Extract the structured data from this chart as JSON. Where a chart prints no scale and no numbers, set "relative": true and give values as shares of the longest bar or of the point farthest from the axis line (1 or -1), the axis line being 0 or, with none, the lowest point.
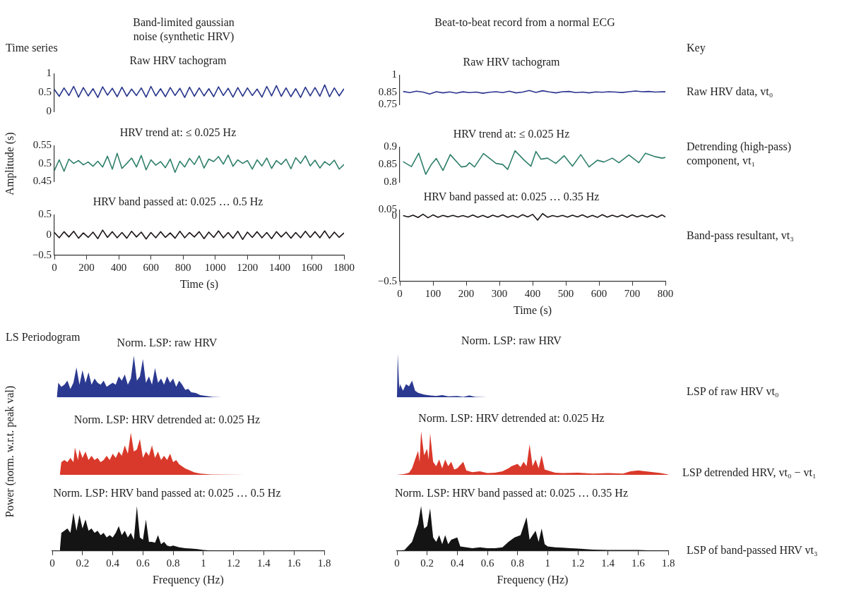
{
  "chart_data": [
    {
      "type": "line",
      "title": "Raw HRV tachogram",
      "color": "#27348b",
      "annotations": [
        "Band-limited gaussian noise (synthetic HRV)",
        "Time series"
      ],
      "tick_labels": "y",
      "xlim": [
        0,
        1800
      ],
      "xticks": [
        0,
        200,
        400,
        600,
        800,
        1000,
        1200,
        1400,
        1600,
        1800
      ],
      "ylim": [
        0,
        1
      ],
      "yticks": [
        0,
        0.5,
        1
      ],
      "x": [
        0,
        30,
        60,
        90,
        120,
        150,
        180,
        210,
        240,
        270,
        300,
        330,
        360,
        390,
        420,
        450,
        480,
        510,
        540,
        570,
        600,
        630,
        660,
        690,
        720,
        750,
        780,
        810,
        840,
        870,
        900,
        930,
        960,
        990,
        1020,
        1050,
        1080,
        1110,
        1140,
        1170,
        1200,
        1230,
        1260,
        1290,
        1320,
        1350,
        1380,
        1410,
        1440,
        1470,
        1500,
        1530,
        1560,
        1590,
        1620,
        1650,
        1680,
        1710,
        1740,
        1770,
        1800
      ],
      "values": [
        0.58,
        0.4,
        0.62,
        0.42,
        0.66,
        0.38,
        0.63,
        0.41,
        0.6,
        0.37,
        0.65,
        0.43,
        0.61,
        0.39,
        0.64,
        0.4,
        0.59,
        0.42,
        0.62,
        0.38,
        0.66,
        0.41,
        0.6,
        0.39,
        0.63,
        0.42,
        0.61,
        0.37,
        0.64,
        0.4,
        0.62,
        0.41,
        0.6,
        0.39,
        0.65,
        0.42,
        0.61,
        0.38,
        0.63,
        0.4,
        0.62,
        0.42,
        0.59,
        0.38,
        0.66,
        0.41,
        0.68,
        0.4,
        0.62,
        0.39,
        0.6,
        0.37,
        0.64,
        0.41,
        0.63,
        0.4,
        0.7,
        0.39,
        0.62,
        0.41,
        0.6
      ]
    },
    {
      "type": "line",
      "title": "Raw HRV tachogram",
      "color": "#2a3590",
      "annotations": [
        "Beat-to-beat record from a normal ECG",
        "Key",
        "Raw HRV data, vt₀"
      ],
      "tick_labels": "y",
      "xlim": [
        0,
        800
      ],
      "xticks": [
        0,
        100,
        200,
        300,
        400,
        500,
        600,
        700,
        800
      ],
      "ylim": [
        0.75,
        1
      ],
      "yticks": [
        0.75,
        0.85,
        1
      ],
      "x": [
        10,
        30,
        50,
        70,
        90,
        110,
        130,
        150,
        170,
        190,
        210,
        230,
        250,
        270,
        290,
        310,
        330,
        350,
        370,
        390,
        410,
        430,
        450,
        470,
        490,
        510,
        530,
        550,
        570,
        590,
        610,
        630,
        650,
        670,
        690,
        710,
        730,
        750,
        770,
        790,
        800
      ],
      "values": [
        0.86,
        0.85,
        0.862,
        0.855,
        0.838,
        0.858,
        0.848,
        0.856,
        0.846,
        0.857,
        0.85,
        0.855,
        0.845,
        0.853,
        0.858,
        0.85,
        0.862,
        0.848,
        0.855,
        0.868,
        0.852,
        0.866,
        0.856,
        0.848,
        0.858,
        0.86,
        0.85,
        0.855,
        0.848,
        0.856,
        0.853,
        0.858,
        0.855,
        0.851,
        0.858,
        0.864,
        0.858,
        0.86,
        0.855,
        0.858,
        0.857
      ]
    },
    {
      "type": "line",
      "title": "HRV trend at: ≤ 0.025 Hz",
      "ylabel": "Amplitude (s)",
      "color": "#2f7f6a",
      "tick_labels": "y",
      "xlim": [
        0,
        1800
      ],
      "xticks": [
        0,
        200,
        400,
        600,
        800,
        1000,
        1200,
        1400,
        1600,
        1800
      ],
      "ylim": [
        0.45,
        0.55
      ],
      "yticks": [
        0.45,
        0.5,
        0.55
      ],
      "x": [
        0,
        30,
        60,
        90,
        120,
        150,
        180,
        210,
        240,
        270,
        300,
        330,
        360,
        390,
        420,
        450,
        480,
        510,
        540,
        570,
        600,
        630,
        660,
        690,
        720,
        750,
        780,
        810,
        840,
        870,
        900,
        930,
        960,
        990,
        1020,
        1050,
        1080,
        1110,
        1140,
        1170,
        1200,
        1230,
        1260,
        1290,
        1320,
        1350,
        1380,
        1410,
        1440,
        1470,
        1500,
        1530,
        1560,
        1590,
        1620,
        1650,
        1680,
        1710,
        1740,
        1770,
        1800
      ],
      "values": [
        0.48,
        0.51,
        0.478,
        0.512,
        0.5,
        0.508,
        0.496,
        0.504,
        0.492,
        0.506,
        0.49,
        0.52,
        0.484,
        0.528,
        0.486,
        0.5,
        0.515,
        0.49,
        0.522,
        0.482,
        0.51,
        0.495,
        0.505,
        0.488,
        0.512,
        0.475,
        0.506,
        0.49,
        0.514,
        0.497,
        0.521,
        0.487,
        0.512,
        0.505,
        0.519,
        0.498,
        0.523,
        0.492,
        0.51,
        0.5,
        0.508,
        0.484,
        0.51,
        0.493,
        0.515,
        0.486,
        0.508,
        0.497,
        0.512,
        0.485,
        0.516,
        0.5,
        0.521,
        0.493,
        0.509,
        0.487,
        0.505,
        0.495,
        0.509,
        0.484,
        0.497
      ]
    },
    {
      "type": "line",
      "title": "HRV trend at: ≤ 0.025 Hz",
      "color": "#2f7f6a",
      "annotations": [
        "Detrending (high-pass) component, vt₁"
      ],
      "tick_labels": "y",
      "xlim": [
        0,
        800
      ],
      "xticks": [
        0,
        100,
        200,
        300,
        400,
        500,
        600,
        700,
        800
      ],
      "ylim": [
        0.8,
        0.9
      ],
      "yticks": [
        0.8,
        0.85,
        0.9
      ],
      "x": [
        10,
        35,
        57,
        78,
        95,
        110,
        130,
        152,
        185,
        200,
        210,
        225,
        252,
        290,
        310,
        325,
        347,
        375,
        395,
        410,
        425,
        445,
        470,
        495,
        520,
        545,
        570,
        595,
        615,
        640,
        660,
        690,
        720,
        740,
        770,
        790,
        800
      ],
      "values": [
        0.858,
        0.844,
        0.882,
        0.822,
        0.85,
        0.867,
        0.833,
        0.878,
        0.843,
        0.845,
        0.855,
        0.843,
        0.881,
        0.853,
        0.85,
        0.836,
        0.889,
        0.862,
        0.845,
        0.887,
        0.865,
        0.868,
        0.853,
        0.875,
        0.845,
        0.878,
        0.843,
        0.862,
        0.857,
        0.868,
        0.855,
        0.877,
        0.855,
        0.882,
        0.872,
        0.868,
        0.87
      ]
    },
    {
      "type": "line",
      "title": "HRV band passed at: 0.025 … 0.5 Hz",
      "xlabel": "Time (s)",
      "color": "#1c1418",
      "xlim": [
        0,
        1800
      ],
      "xticks": [
        0,
        200,
        400,
        600,
        800,
        1000,
        1200,
        1400,
        1600,
        1800
      ],
      "ylim": [
        -0.5,
        0.5
      ],
      "yticks": [
        {
          "value": -0.5,
          "label": "−0.5"
        },
        0,
        0.5
      ],
      "x": [
        0,
        30,
        60,
        90,
        120,
        150,
        180,
        210,
        240,
        270,
        300,
        330,
        360,
        390,
        420,
        450,
        480,
        510,
        540,
        570,
        600,
        630,
        660,
        690,
        720,
        750,
        780,
        810,
        840,
        870,
        900,
        930,
        960,
        990,
        1020,
        1050,
        1080,
        1110,
        1140,
        1170,
        1200,
        1230,
        1260,
        1290,
        1320,
        1350,
        1380,
        1410,
        1440,
        1470,
        1500,
        1530,
        1560,
        1590,
        1620,
        1650,
        1680,
        1710,
        1740,
        1770,
        1800
      ],
      "values": [
        0.06,
        -0.07,
        0.08,
        -0.05,
        0.09,
        -0.08,
        0.05,
        -0.06,
        0.07,
        -0.09,
        0.12,
        -0.06,
        0.08,
        -0.07,
        0.06,
        -0.08,
        0.09,
        -0.05,
        0.07,
        -0.1,
        0.06,
        -0.07,
        0.08,
        -0.06,
        0.05,
        -0.08,
        0.09,
        -0.07,
        0.06,
        -0.05,
        0.08,
        -0.09,
        0.07,
        -0.06,
        0.1,
        -0.07,
        0.06,
        -0.08,
        0.09,
        -0.11,
        0.07,
        -0.06,
        0.08,
        -0.07,
        0.06,
        -0.09,
        0.08,
        -0.05,
        0.07,
        -0.08,
        0.06,
        -0.07,
        0.09,
        -0.06,
        0.08,
        -0.07,
        0.1,
        -0.08,
        0.07,
        -0.06,
        0.05
      ]
    },
    {
      "type": "line",
      "title": "HRV band passed at: 0.025 … 0.35 Hz",
      "xlabel": "Time (s)",
      "color": "#1c1418",
      "annotations": [
        "Band-pass resultant, vt₃"
      ],
      "xlim": [
        0,
        800
      ],
      "xticks": [
        0,
        100,
        200,
        300,
        400,
        500,
        600,
        700,
        800
      ],
      "ylim": [
        -0.5,
        0.05
      ],
      "yticks": [
        {
          "value": -0.5,
          "label": "−0.5"
        },
        0,
        0.05
      ],
      "x": [
        10,
        25,
        40,
        55,
        70,
        85,
        100,
        115,
        130,
        145,
        160,
        175,
        190,
        205,
        220,
        235,
        250,
        265,
        280,
        295,
        310,
        325,
        340,
        355,
        370,
        385,
        400,
        415,
        430,
        445,
        460,
        475,
        490,
        505,
        520,
        535,
        550,
        565,
        580,
        595,
        610,
        625,
        640,
        655,
        670,
        685,
        700,
        715,
        730,
        745,
        760,
        775,
        790,
        800
      ],
      "values": [
        0.005,
        -0.006,
        0.008,
        -0.01,
        0.015,
        -0.012,
        0.01,
        -0.008,
        0.006,
        -0.005,
        0.007,
        -0.006,
        0.005,
        -0.007,
        0.009,
        -0.008,
        0.006,
        -0.01,
        0.008,
        -0.006,
        0.01,
        -0.008,
        0.006,
        -0.009,
        0.012,
        -0.006,
        0.014,
        -0.03,
        0.02,
        -0.008,
        0.005,
        -0.004,
        0.006,
        -0.007,
        0.008,
        -0.006,
        0.01,
        -0.008,
        0.007,
        -0.009,
        0.012,
        -0.007,
        0.008,
        -0.006,
        0.009,
        -0.008,
        0.01,
        -0.006,
        0.008,
        -0.007,
        0.009,
        -0.008,
        0.01,
        -0.006
      ]
    },
    {
      "type": "area",
      "title": "Norm. LSP: raw HRV",
      "relative": true,
      "color": "#2b3990",
      "annotations": [
        "LS Periodogram"
      ],
      "tick_labels": false,
      "xlim": [
        0,
        1.8
      ],
      "xticks": [
        0,
        0.2,
        0.4,
        0.6,
        0.8,
        1,
        1.2,
        1.4,
        1.6,
        1.8
      ],
      "x": [
        0.03,
        0.04,
        0.06,
        0.08,
        0.1,
        0.12,
        0.14,
        0.16,
        0.18,
        0.2,
        0.22,
        0.24,
        0.26,
        0.28,
        0.3,
        0.32,
        0.34,
        0.36,
        0.38,
        0.4,
        0.42,
        0.44,
        0.46,
        0.48,
        0.5,
        0.52,
        0.54,
        0.56,
        0.58,
        0.6,
        0.62,
        0.64,
        0.66,
        0.68,
        0.7,
        0.72,
        0.74,
        0.76,
        0.78,
        0.8,
        0.82,
        0.84,
        0.86,
        0.88,
        0.9,
        0.92,
        0.95,
        0.98,
        1.02,
        1.06,
        1.12
      ],
      "values": [
        0,
        0.35,
        0.25,
        0.3,
        0.4,
        0.2,
        0.35,
        0.72,
        0.3,
        0.65,
        0.35,
        0.6,
        0.3,
        0.45,
        0.35,
        0.3,
        0.4,
        0.25,
        0.3,
        0.35,
        0.3,
        0.5,
        0.4,
        0.55,
        0.3,
        0.45,
        1,
        0.4,
        0.5,
        0.92,
        0.35,
        0.5,
        0.3,
        0.7,
        0.35,
        0.45,
        0.3,
        0.5,
        0.35,
        0.45,
        0.25,
        0.4,
        0.3,
        0.18,
        0.2,
        0.12,
        0.1,
        0.05,
        0.03,
        0.01,
        0
      ]
    },
    {
      "type": "area",
      "title": "Norm. LSP: raw HRV",
      "relative": true,
      "color": "#2b3990",
      "annotations": [
        "LSP of raw HRV vt₀"
      ],
      "tick_labels": false,
      "xlim": [
        0,
        1.8
      ],
      "xticks": [
        0,
        0.2,
        0.4,
        0.6,
        0.8,
        1,
        1.2,
        1.4,
        1.6,
        1.8
      ],
      "x": [
        0,
        0.005,
        0.015,
        0.02,
        0.04,
        0.06,
        0.08,
        0.1,
        0.12,
        0.14,
        0.18,
        0.22,
        0.26,
        0.3,
        0.34,
        0.4,
        0.44,
        0.48,
        0.52,
        0.6,
        1.8
      ],
      "values": [
        0,
        1,
        0.2,
        0.3,
        0.15,
        0.3,
        0.25,
        0.38,
        0.15,
        0.1,
        0.06,
        0.04,
        0.03,
        0.05,
        0.02,
        0.03,
        0.01,
        0.04,
        0.01,
        0,
        0
      ]
    },
    {
      "type": "area",
      "title": "Norm. LSP: HRV detrended at: 0.025 Hz",
      "ylabel": "Power (norm. w.r.t. peak val)",
      "relative": true,
      "color": "#d9392b",
      "tick_labels": false,
      "xlim": [
        0,
        1.8
      ],
      "xticks": [
        0,
        0.2,
        0.4,
        0.6,
        0.8,
        1,
        1.2,
        1.4,
        1.6,
        1.8
      ],
      "x": [
        0.05,
        0.06,
        0.08,
        0.1,
        0.12,
        0.14,
        0.15,
        0.17,
        0.18,
        0.2,
        0.22,
        0.24,
        0.26,
        0.28,
        0.3,
        0.32,
        0.34,
        0.36,
        0.38,
        0.4,
        0.42,
        0.44,
        0.46,
        0.48,
        0.5,
        0.52,
        0.54,
        0.56,
        0.58,
        0.6,
        0.62,
        0.64,
        0.66,
        0.68,
        0.7,
        0.72,
        0.74,
        0.76,
        0.78,
        0.8,
        0.82,
        0.84,
        0.86,
        0.88,
        0.9,
        0.94,
        0.98,
        1.05,
        1.28
      ],
      "values": [
        0,
        0.3,
        0.35,
        0.3,
        0.4,
        0.3,
        0.65,
        0.35,
        0.6,
        0.4,
        0.55,
        0.35,
        0.45,
        0.35,
        0.4,
        0.3,
        0.35,
        0.45,
        0.35,
        0.5,
        0.4,
        0.55,
        0.45,
        0.7,
        0.5,
        1,
        0.55,
        0.6,
        0.85,
        0.4,
        0.55,
        0.45,
        0.7,
        0.4,
        0.55,
        0.35,
        0.45,
        0.35,
        0.5,
        0.3,
        0.35,
        0.25,
        0.2,
        0.15,
        0.12,
        0.06,
        0.03,
        0.01,
        0
      ]
    },
    {
      "type": "area",
      "title": "Norm. LSP: HRV detrended at: 0.025 Hz",
      "relative": true,
      "color": "#d9392b",
      "annotations": [
        "LSP detrended HRV, vt₀ − vt₁"
      ],
      "tick_labels": false,
      "xlim": [
        0,
        1.8
      ],
      "xticks": [
        0,
        0.2,
        0.4,
        0.6,
        0.8,
        1,
        1.2,
        1.4,
        1.6,
        1.8
      ],
      "x": [
        0,
        0.05,
        0.08,
        0.1,
        0.12,
        0.14,
        0.15,
        0.16,
        0.18,
        0.2,
        0.21,
        0.22,
        0.24,
        0.26,
        0.28,
        0.3,
        0.32,
        0.34,
        0.36,
        0.38,
        0.4,
        0.44,
        0.46,
        0.5,
        0.55,
        0.6,
        0.65,
        0.7,
        0.74,
        0.76,
        0.8,
        0.82,
        0.84,
        0.86,
        0.88,
        0.9,
        0.92,
        0.94,
        0.96,
        0.98,
        1,
        1.05,
        1.1,
        1.2,
        1.3,
        1.4,
        1.5,
        1.55,
        1.6,
        1.65,
        1.7,
        1.75,
        1.8
      ],
      "values": [
        0,
        0.02,
        0.05,
        0.15,
        0.35,
        0.55,
        0.3,
        1,
        0.45,
        0.6,
        0.35,
        0.95,
        0.3,
        0.2,
        0.35,
        0.15,
        0.35,
        0.2,
        0.3,
        0.12,
        0.15,
        0.3,
        0.1,
        0.06,
        0.08,
        0.04,
        0.05,
        0.08,
        0.15,
        0.2,
        0.25,
        0.18,
        0.3,
        0.2,
        0.7,
        0.2,
        0.35,
        0.15,
        0.45,
        0.12,
        0.1,
        0.05,
        0.04,
        0.05,
        0.03,
        0.04,
        0.03,
        0.08,
        0.1,
        0.08,
        0.06,
        0.04,
        0.01
      ]
    },
    {
      "type": "area",
      "title": "Norm. LSP: HRV band passed at: 0.025 … 0.5 Hz",
      "xlabel": "Frequency (Hz)",
      "relative": true,
      "color": "#141414",
      "tick_labels": "x",
      "xlim": [
        0,
        1.8
      ],
      "xticks": [
        0,
        0.2,
        0.4,
        0.6,
        0.8,
        1,
        1.2,
        1.4,
        1.6,
        1.8
      ],
      "x": [
        0.05,
        0.06,
        0.08,
        0.1,
        0.12,
        0.14,
        0.16,
        0.18,
        0.2,
        0.22,
        0.24,
        0.26,
        0.28,
        0.3,
        0.32,
        0.34,
        0.36,
        0.38,
        0.4,
        0.42,
        0.44,
        0.46,
        0.48,
        0.5,
        0.52,
        0.54,
        0.56,
        0.58,
        0.6,
        0.62,
        0.64,
        0.66,
        0.68,
        0.7,
        0.72,
        0.74,
        0.76,
        0.78,
        0.8,
        0.84,
        0.88,
        0.92,
        0.96,
        1,
        1.05,
        1.34
      ],
      "values": [
        0,
        0.4,
        0.45,
        0.5,
        0.4,
        0.85,
        0.45,
        0.8,
        0.5,
        0.7,
        0.45,
        0.5,
        0.4,
        0.45,
        0.35,
        0.4,
        0.3,
        0.35,
        0.3,
        0.4,
        0.55,
        0.35,
        0.45,
        0.3,
        0.4,
        0.25,
        1,
        0.3,
        0.25,
        0.7,
        0.2,
        0.2,
        0.18,
        0.35,
        0.15,
        0.2,
        0.12,
        0.1,
        0.12,
        0.08,
        0.06,
        0.05,
        0.04,
        0.02,
        0.01,
        0
      ]
    },
    {
      "type": "area",
      "title": "Norm. LSP: HRV band passed at: 0.025 … 0.35 Hz",
      "xlabel": "Frequency (Hz)",
      "relative": true,
      "color": "#141414",
      "annotations": [
        "LSP of band-passed HRV vt₃"
      ],
      "tick_labels": "x",
      "xlim": [
        0,
        1.8
      ],
      "xticks": [
        0,
        0.2,
        0.4,
        0.6,
        0.8,
        1,
        1.2,
        1.4,
        1.6,
        1.8
      ],
      "x": [
        0,
        0.05,
        0.1,
        0.12,
        0.14,
        0.16,
        0.18,
        0.2,
        0.22,
        0.24,
        0.26,
        0.28,
        0.3,
        0.32,
        0.34,
        0.36,
        0.4,
        0.42,
        0.46,
        0.5,
        0.55,
        0.6,
        0.65,
        0.7,
        0.74,
        0.78,
        0.82,
        0.86,
        0.88,
        0.92,
        0.94,
        0.96,
        0.98,
        1,
        1.05,
        1.1,
        1.15,
        1.2,
        1.3,
        1.4,
        1.5,
        1.6,
        1.7,
        1.8
      ],
      "values": [
        0,
        0.02,
        0.2,
        0.4,
        0.6,
        1,
        0.5,
        0.55,
        0.95,
        0.3,
        0.2,
        0.35,
        0.15,
        0.35,
        0.15,
        0.25,
        0.3,
        0.1,
        0.08,
        0.06,
        0.08,
        0.06,
        0.06,
        0.08,
        0.2,
        0.3,
        0.35,
        0.75,
        0.25,
        0.45,
        0.2,
        0.5,
        0.15,
        0.1,
        0.08,
        0.07,
        0.06,
        0.05,
        0.03,
        0.02,
        0.02,
        0.02,
        0.01,
        0.01
      ]
    }
  ]
}
